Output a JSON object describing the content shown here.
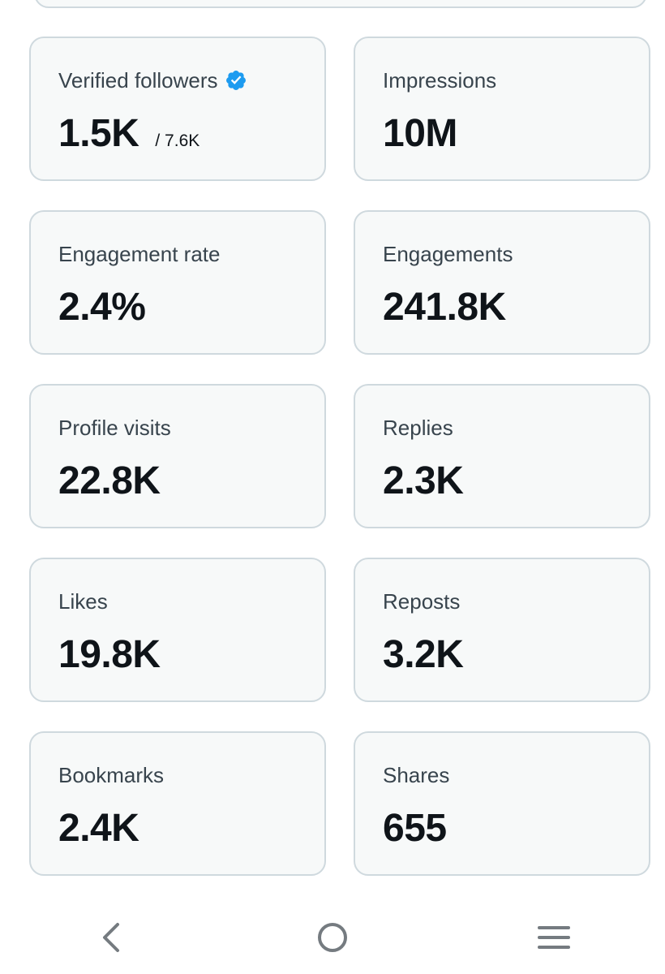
{
  "stats": [
    {
      "label": "Verified followers",
      "value": "1.5K",
      "sub": "/ 7.6K",
      "verified": true
    },
    {
      "label": "Impressions",
      "value": "10M"
    },
    {
      "label": "Engagement rate",
      "value": "2.4%"
    },
    {
      "label": "Engagements",
      "value": "241.8K"
    },
    {
      "label": "Profile visits",
      "value": "22.8K"
    },
    {
      "label": "Replies",
      "value": "2.3K"
    },
    {
      "label": "Likes",
      "value": "19.8K"
    },
    {
      "label": "Reposts",
      "value": "3.2K"
    },
    {
      "label": "Bookmarks",
      "value": "2.4K"
    },
    {
      "label": "Shares",
      "value": "655"
    }
  ],
  "icons": {
    "verified": "verified-badge-icon",
    "back": "back-chevron-icon",
    "home": "home-circle-icon",
    "menu": "menu-lines-icon"
  },
  "colors": {
    "verified_blue": "#1d9bf0",
    "card_bg": "#f7f9f9",
    "card_border": "#cfd9de",
    "nav_icon": "#757b80"
  }
}
